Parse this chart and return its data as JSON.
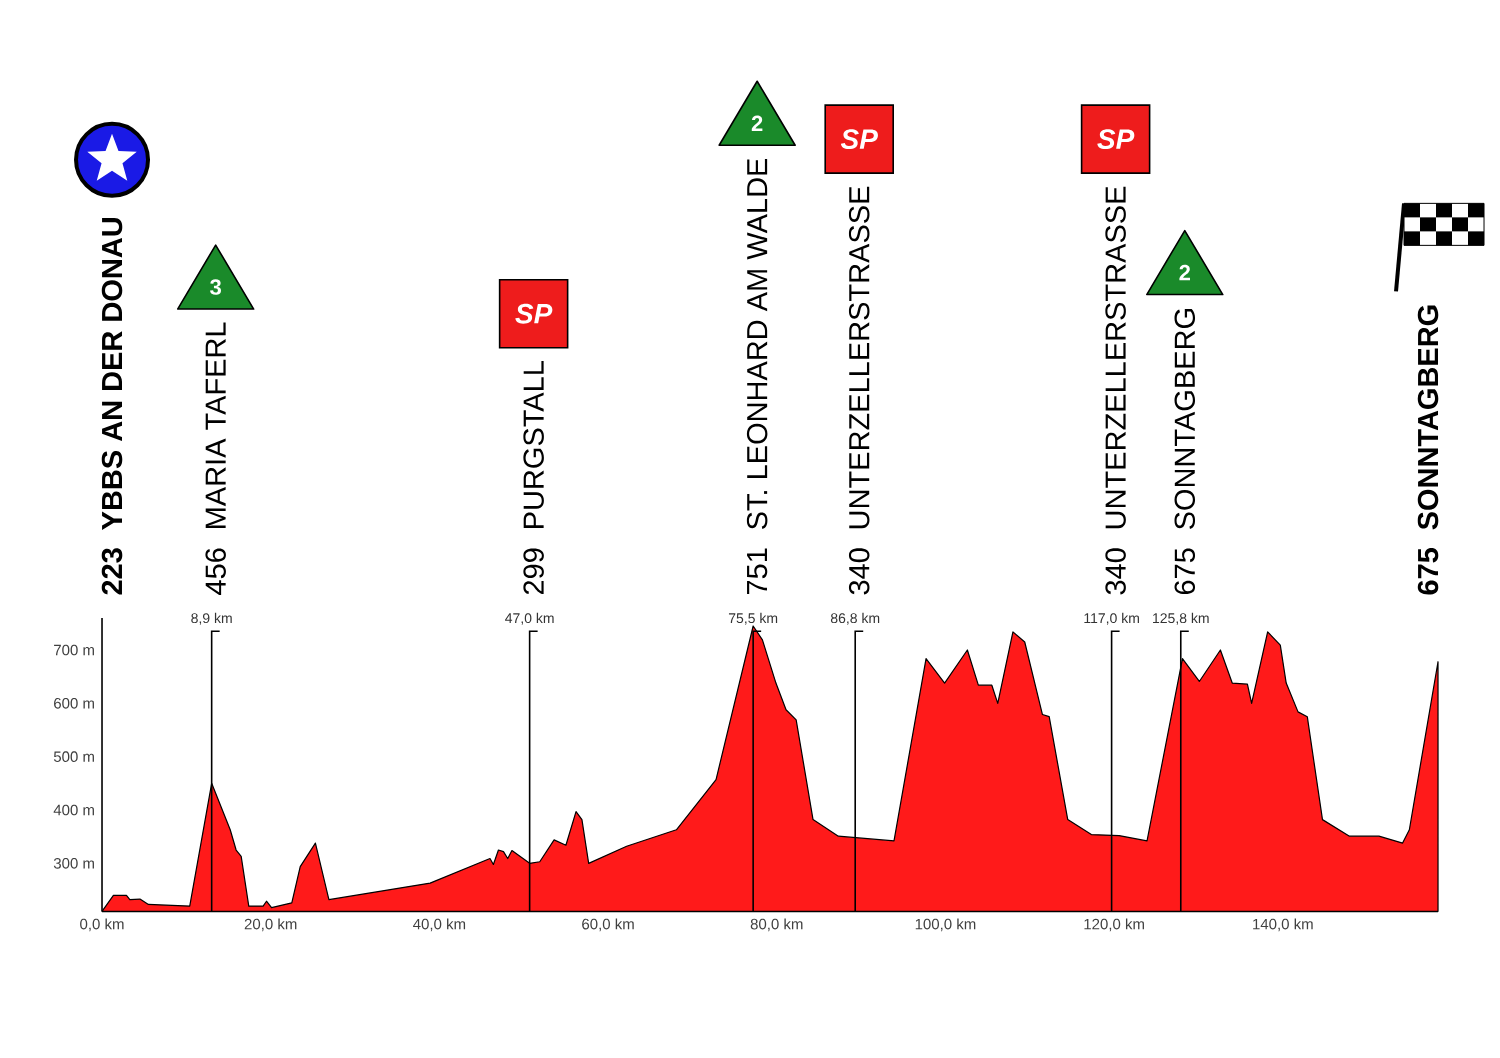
{
  "chart_data": {
    "type": "area",
    "color": "#ff1a1a",
    "x": [
      0,
      1.35,
      2.9,
      3.3,
      4.5,
      5.5,
      10.4,
      13.0,
      15.2,
      15.9,
      16.5,
      17.4,
      19.1,
      19.5,
      20.1,
      22.5,
      23.5,
      25.3,
      26.9,
      38.9,
      46.0,
      46.4,
      47.0,
      47.6,
      48.1,
      48.6,
      50.7,
      51.9,
      53.6,
      55.0,
      56.2,
      56.9,
      57.7,
      62.2,
      68.1,
      72.8,
      77.2,
      78.3,
      79.9,
      81.1,
      82.3,
      84.3,
      87.3,
      93.9,
      97.7,
      99.9,
      102.6,
      103.9,
      105.5,
      106.2,
      108.0,
      109.4,
      111.5,
      112.3,
      114.5,
      117.3,
      120.6,
      123.9,
      128.1,
      130.1,
      132.6,
      134.0,
      135.8,
      136.3,
      138.2,
      139.7,
      140.4,
      141.8,
      142.9,
      144.7,
      147.9,
      151.4,
      154.2,
      155.0,
      158.4
    ],
    "values": [
      210,
      240,
      240,
      232,
      233,
      223,
      220,
      450,
      363,
      325,
      313,
      220,
      220,
      229,
      217,
      226,
      294,
      338,
      232,
      263,
      309,
      298,
      325,
      322,
      309,
      324,
      300,
      303,
      344,
      334,
      397,
      382,
      300,
      332,
      363,
      457,
      745,
      719,
      638,
      588,
      569,
      382,
      351,
      342,
      684,
      638,
      700,
      634,
      634,
      600,
      734,
      715,
      579,
      575,
      382,
      354,
      352,
      342,
      684,
      641,
      700,
      638,
      636,
      600,
      734,
      709,
      638,
      584,
      575,
      382,
      351,
      351,
      338,
      363,
      678
    ],
    "xlim": [
      0,
      158.4
    ],
    "ylim": [
      210,
      760
    ],
    "xticks": [
      {
        "value": 0,
        "label": "0,0 km"
      },
      {
        "value": 20,
        "label": "20,0 km"
      },
      {
        "value": 40,
        "label": "40,0 km"
      },
      {
        "value": 60,
        "label": "60,0 km"
      },
      {
        "value": 80,
        "label": "80,0 km"
      },
      {
        "value": 100,
        "label": "100,0 km"
      },
      {
        "value": 120,
        "label": "120,0 km"
      },
      {
        "value": 140,
        "label": "140,0 km"
      }
    ],
    "yticks": [
      {
        "value": 300,
        "label": "300 m"
      },
      {
        "value": 400,
        "label": "400 m"
      },
      {
        "value": 500,
        "label": "500 m"
      },
      {
        "value": 600,
        "label": "600 m"
      },
      {
        "value": 700,
        "label": "700 m"
      }
    ],
    "ref_lines": [
      {
        "axis": "x",
        "value": 13.0,
        "label": "8,9 km"
      },
      {
        "axis": "x",
        "value": 50.7,
        "label": "47,0 km"
      },
      {
        "axis": "x",
        "value": 77.2,
        "label": "75,5 km"
      },
      {
        "axis": "x",
        "value": 89.3,
        "label": "86,8 km"
      },
      {
        "axis": "x",
        "value": 119.7,
        "label": "117,0 km"
      },
      {
        "axis": "x",
        "value": 127.9,
        "label": "125,8 km"
      }
    ],
    "annotations": [
      "223",
      "YBBS AN DER DONAU",
      "456",
      "MARIA TAFERL",
      "3",
      "299",
      "PURGSTALL",
      "SP",
      "751",
      "ST. LEONHARD AM WALDE",
      "2",
      "340",
      "UNTERZELLERSTRASSE",
      "SP",
      "340",
      "UNTERZELLERSTRASSE",
      "SP",
      "675",
      "SONNTAGBERG",
      "2",
      "675",
      "SONNTAGBERG"
    ]
  }
}
